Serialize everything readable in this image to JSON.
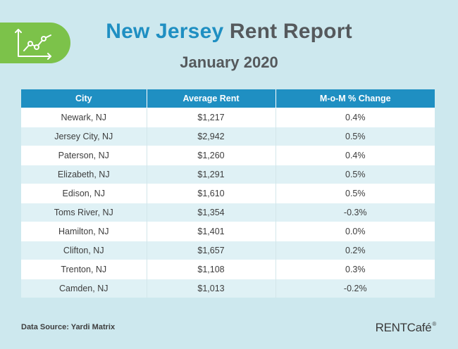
{
  "colors": {
    "background": "#cde8ee",
    "accent": "#1f8fc2",
    "text": "#55595c",
    "badge_green": "#7cc24a"
  },
  "logo": {
    "icon": "rising-chart-icon"
  },
  "chart_data": {
    "type": "table",
    "title_state": "New Jersey",
    "title_rest": "Rent Report",
    "subtitle": "January 2020",
    "columns": [
      "City",
      "Average Rent",
      "M-o-M % Change"
    ],
    "rows": [
      [
        "Newark, NJ",
        "$1,217",
        "0.4%"
      ],
      [
        "Jersey City, NJ",
        "$2,942",
        "0.5%"
      ],
      [
        "Paterson, NJ",
        "$1,260",
        "0.4%"
      ],
      [
        "Elizabeth, NJ",
        "$1,291",
        "0.5%"
      ],
      [
        "Edison, NJ",
        "$1,610",
        "0.5%"
      ],
      [
        "Toms River, NJ",
        "$1,354",
        "-0.3%"
      ],
      [
        "Hamilton, NJ",
        "$1,401",
        "0.0%"
      ],
      [
        "Clifton, NJ",
        "$1,657",
        "0.2%"
      ],
      [
        "Trenton, NJ",
        "$1,108",
        "0.3%"
      ],
      [
        "Camden, NJ",
        "$1,013",
        "-0.2%"
      ]
    ]
  },
  "footer": {
    "source": "Data Source: Yardi Matrix",
    "brand_main": "RENTCafé",
    "brand_reg": "®"
  }
}
